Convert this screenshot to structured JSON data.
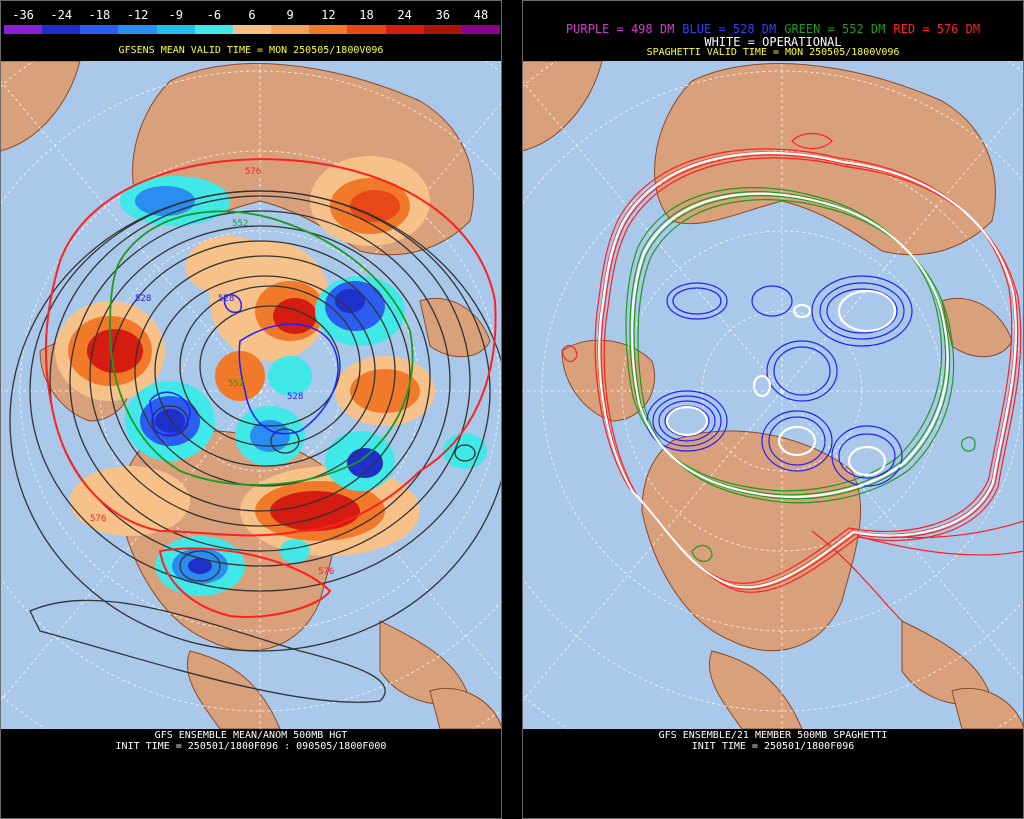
{
  "left": {
    "colorbar": {
      "labels": [
        "-36",
        "-24",
        "-18",
        "-12",
        "-9",
        "-6",
        "6",
        "9",
        "12",
        "18",
        "24",
        "36",
        "48"
      ],
      "colors": [
        "#8a1fd6",
        "#1f2fc9",
        "#2b5ef0",
        "#2a8ef0",
        "#22c0e8",
        "#40e8e8",
        "#f6c28a",
        "#f5a25a",
        "#f07a2a",
        "#e84818",
        "#d41c10",
        "#a81408",
        "#880090"
      ]
    },
    "subtitle": "GFSENS MEAN VALID TIME = MON 250505/1800V096",
    "footer_line1": "GFS ENSEMBLE MEAN/ANOM 500MB HGT",
    "footer_line2": "INIT TIME = 250501/1800F096 : 090505/1800F000",
    "contour_labels": [
      "576",
      "552",
      "528",
      "528",
      "528",
      "552",
      "576",
      "576"
    ]
  },
  "right": {
    "legend": [
      {
        "text": "PURPLE = 498 DM",
        "color": "#d23cd2"
      },
      {
        "text": "BLUE = 528 DM",
        "color": "#3a3aff"
      },
      {
        "text": "GREEN = 552 DM",
        "color": "#1e9a1e"
      },
      {
        "text": "RED = 576 DM",
        "color": "#ff2020"
      }
    ],
    "white_line": "WHITE = OPERATIONAL",
    "subtitle": "SPAGHETTI VALID TIME = MON 250505/1800V096",
    "footer_line1": "GFS ENSEMBLE/21 MEMBER 500MB SPAGHETTI",
    "footer_line2": "INIT TIME = 250501/1800F096"
  },
  "colors": {
    "ocean": "#a9c8ea",
    "land": "#d9a07c",
    "border": "#8b4a2a",
    "grid": "#ffffff"
  }
}
